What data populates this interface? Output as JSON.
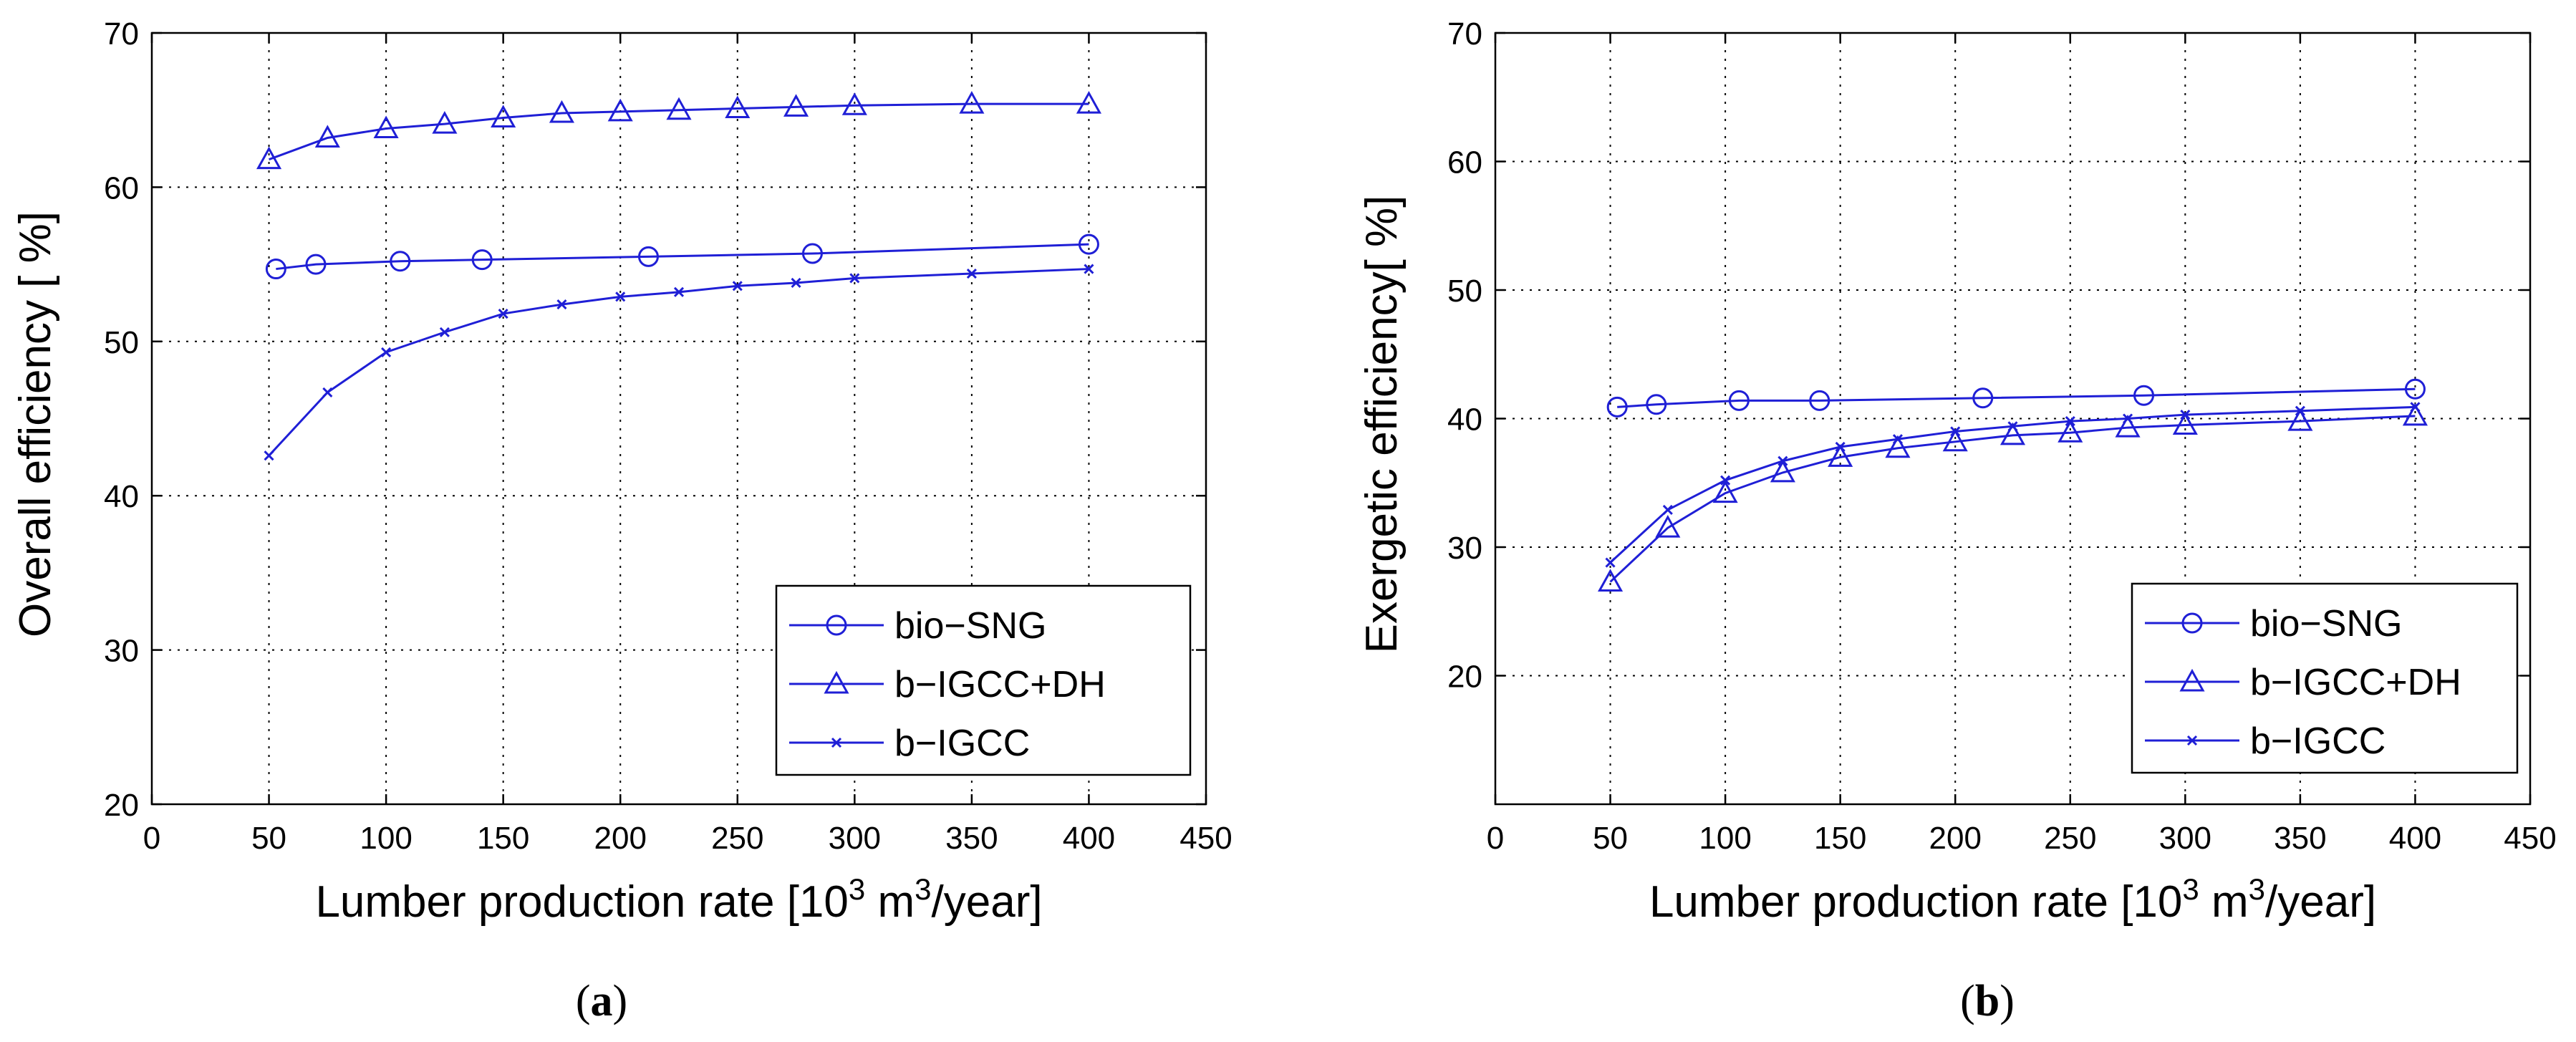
{
  "chart_data": [
    {
      "type": "line",
      "panel_label": "a",
      "xlabel_prefix": "Lumber production rate [10",
      "xlabel_sup1": "3",
      "xlabel_mid": " m",
      "xlabel_sup2": "3",
      "xlabel_suffix": "/year]",
      "ylabel": "Overall efficiency [ %]",
      "xlim": [
        0,
        450
      ],
      "ylim": [
        20,
        70
      ],
      "xticks": [
        0,
        50,
        100,
        150,
        200,
        250,
        300,
        350,
        400,
        450
      ],
      "yticks": [
        20,
        30,
        40,
        50,
        60,
        70
      ],
      "grid": true,
      "legend_position": "bottom-right",
      "series": [
        {
          "name": "bio−SNG",
          "marker": "circle",
          "x": [
            53,
            70,
            106,
            141,
            212,
            282,
            400
          ],
          "y": [
            54.7,
            55.0,
            55.2,
            55.3,
            55.5,
            55.7,
            56.3
          ]
        },
        {
          "name": "b−IGCC+DH",
          "marker": "triangle",
          "x": [
            50,
            75,
            100,
            125,
            150,
            175,
            200,
            225,
            250,
            275,
            300,
            350,
            400
          ],
          "y": [
            61.8,
            63.2,
            63.8,
            64.1,
            64.5,
            64.8,
            64.9,
            65.0,
            65.1,
            65.2,
            65.3,
            65.4,
            65.4
          ]
        },
        {
          "name": "b−IGCC",
          "marker": "x",
          "x": [
            50,
            75,
            100,
            125,
            150,
            175,
            200,
            225,
            250,
            275,
            300,
            350,
            400
          ],
          "y": [
            42.6,
            46.7,
            49.3,
            50.6,
            51.8,
            52.4,
            52.9,
            53.2,
            53.6,
            53.8,
            54.1,
            54.4,
            54.7
          ]
        }
      ]
    },
    {
      "type": "line",
      "panel_label": "b",
      "xlabel_prefix": "Lumber production rate [10",
      "xlabel_sup1": "3",
      "xlabel_mid": " m",
      "xlabel_sup2": "3",
      "xlabel_suffix": "/year]",
      "ylabel": "Exergetic efficiency[ %]",
      "xlim": [
        0,
        450
      ],
      "ylim": [
        10,
        70
      ],
      "xticks": [
        0,
        50,
        100,
        150,
        200,
        250,
        300,
        350,
        400,
        450
      ],
      "yticks": [
        20,
        30,
        40,
        50,
        60,
        70
      ],
      "grid": true,
      "legend_position": "bottom-right",
      "series": [
        {
          "name": "bio−SNG",
          "marker": "circle",
          "x": [
            53,
            70,
            106,
            141,
            212,
            282,
            400
          ],
          "y": [
            40.9,
            41.1,
            41.4,
            41.4,
            41.6,
            41.8,
            42.3
          ]
        },
        {
          "name": "b−IGCC+DH",
          "marker": "triangle",
          "x": [
            50,
            75,
            100,
            125,
            150,
            175,
            200,
            225,
            250,
            275,
            300,
            350,
            400
          ],
          "y": [
            27.3,
            31.5,
            34.2,
            35.8,
            37.0,
            37.7,
            38.2,
            38.7,
            38.9,
            39.3,
            39.5,
            39.8,
            40.2
          ]
        },
        {
          "name": "b−IGCC",
          "marker": "x",
          "x": [
            50,
            75,
            100,
            125,
            150,
            175,
            200,
            225,
            250,
            275,
            300,
            350,
            400
          ],
          "y": [
            28.8,
            32.9,
            35.2,
            36.7,
            37.8,
            38.4,
            39.0,
            39.4,
            39.8,
            40.0,
            40.3,
            40.6,
            40.9
          ]
        }
      ]
    }
  ],
  "colors": {
    "series": "#1f1fd6",
    "axes": "#000000",
    "background": "#ffffff"
  }
}
